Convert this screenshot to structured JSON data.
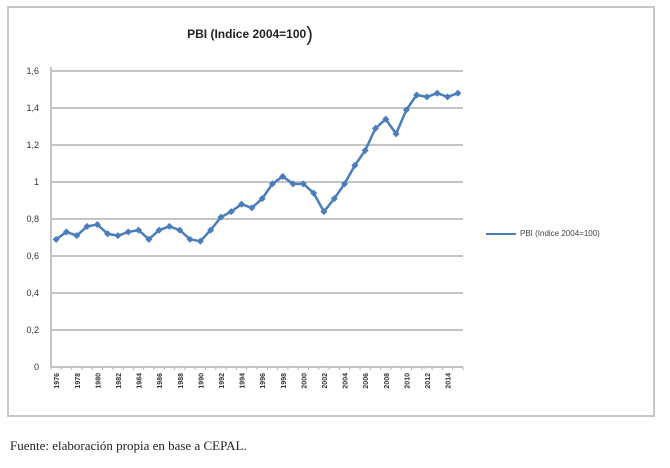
{
  "chart_data": {
    "type": "line",
    "title": "PBI (Indice 2004=100)",
    "xlabel": "",
    "ylabel": "",
    "ylim": [
      0,
      1.6
    ],
    "yticks": [
      "0",
      "0,2",
      "0,4",
      "0,6",
      "0,8",
      "1",
      "1,2",
      "1,4",
      "1,6"
    ],
    "xtick_labels": [
      "1976",
      "1978",
      "1980",
      "1982",
      "1984",
      "1986",
      "1988",
      "1990",
      "1992",
      "1994",
      "1996",
      "1998",
      "2000",
      "2002",
      "2004",
      "2006",
      "2008",
      "2010",
      "2012",
      "2014"
    ],
    "grid": true,
    "legend_position": "right",
    "x": [
      1976,
      1977,
      1978,
      1979,
      1980,
      1981,
      1982,
      1983,
      1984,
      1985,
      1986,
      1987,
      1988,
      1989,
      1990,
      1991,
      1992,
      1993,
      1994,
      1995,
      1996,
      1997,
      1998,
      1999,
      2000,
      2001,
      2002,
      2003,
      2004,
      2005,
      2006,
      2007,
      2008,
      2009,
      2010,
      2011,
      2012,
      2013,
      2014,
      2015
    ],
    "series": [
      {
        "name": "PBI (Indice 2004=100)",
        "color": "#4a7ebb",
        "values": [
          0.69,
          0.73,
          0.71,
          0.76,
          0.77,
          0.72,
          0.71,
          0.73,
          0.74,
          0.69,
          0.74,
          0.76,
          0.74,
          0.69,
          0.68,
          0.74,
          0.81,
          0.84,
          0.88,
          0.86,
          0.91,
          0.99,
          1.03,
          0.99,
          0.99,
          0.94,
          0.84,
          0.91,
          0.99,
          1.09,
          1.17,
          1.29,
          1.34,
          1.26,
          1.39,
          1.47,
          1.46,
          1.48,
          1.46,
          1.48
        ]
      }
    ]
  },
  "title": {
    "text": "PBI (Indice 2004=100",
    "paren": ")"
  },
  "legend": {
    "label": "PBI (Indice 2004=100)"
  },
  "source": "Fuente: elaboración propia en base a CEPAL."
}
